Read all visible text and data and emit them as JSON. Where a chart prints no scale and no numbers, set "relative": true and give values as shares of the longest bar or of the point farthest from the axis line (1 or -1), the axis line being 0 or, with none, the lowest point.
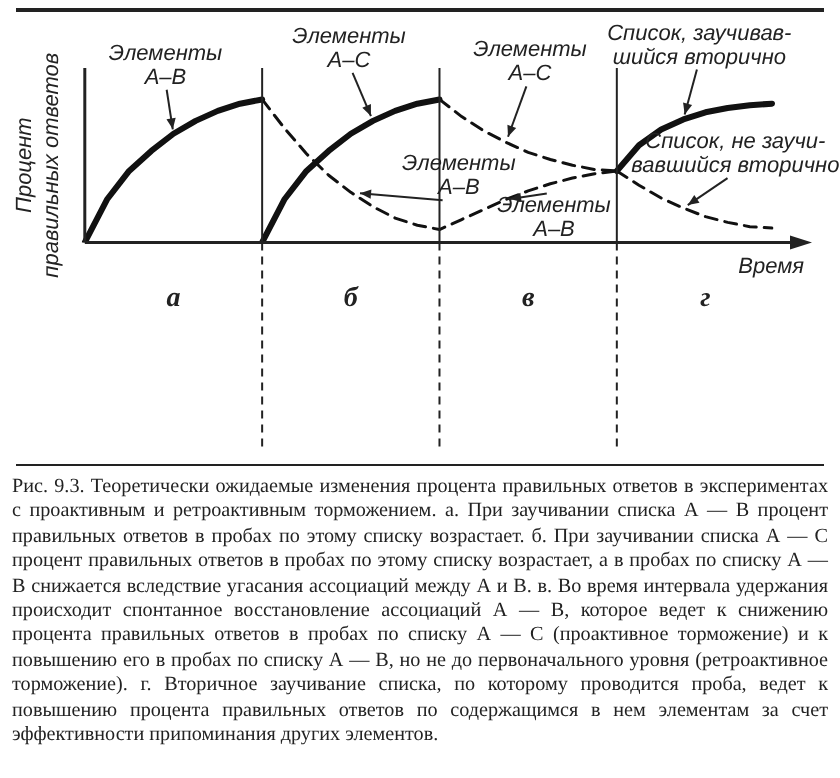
{
  "chart_data": {
    "type": "line",
    "relative": true,
    "ylabel": "Процент\nправильных ответов",
    "xlabel": "Время",
    "grid": "x",
    "categories": [
      null,
      null,
      null,
      null,
      "а",
      null,
      null,
      null,
      null,
      null,
      null,
      null,
      "б",
      null,
      null,
      null,
      null,
      null,
      null,
      null,
      "в",
      null,
      null,
      null,
      null,
      null,
      null,
      null,
      "г",
      null,
      null,
      null
    ],
    "series": [
      {
        "color": "#111111",
        "line_style": "solid",
        "values": [
          0,
          0.3,
          0.5,
          0.64,
          0.76,
          0.85,
          0.92,
          0.97,
          1,
          null,
          null,
          null,
          null,
          null,
          null,
          null,
          null,
          null,
          null,
          null,
          null,
          null,
          null,
          null,
          null,
          null,
          null,
          null,
          null,
          null,
          null,
          null
        ]
      },
      {
        "color": "#111111",
        "line_style": "dashed",
        "values": [
          null,
          null,
          null,
          null,
          null,
          null,
          null,
          null,
          1,
          0.8,
          0.62,
          0.47,
          0.35,
          0.25,
          0.17,
          0.12,
          0.09,
          0.16,
          0.23,
          0.3,
          0.36,
          0.41,
          0.45,
          0.48,
          0.5,
          null,
          null,
          null,
          null,
          null,
          null,
          null
        ]
      },
      {
        "color": "#111111",
        "line_style": "solid",
        "values": [
          null,
          null,
          null,
          null,
          null,
          null,
          null,
          null,
          0,
          0.3,
          0.5,
          0.64,
          0.76,
          0.85,
          0.92,
          0.97,
          1,
          null,
          null,
          null,
          null,
          null,
          null,
          null,
          null,
          null,
          null,
          null,
          null,
          null,
          null,
          null
        ]
      },
      {
        "color": "#111111",
        "line_style": "dashed",
        "values": [
          null,
          null,
          null,
          null,
          null,
          null,
          null,
          null,
          null,
          null,
          null,
          null,
          null,
          null,
          null,
          null,
          1,
          0.88,
          0.78,
          0.7,
          0.63,
          0.58,
          0.54,
          0.51,
          0.5,
          null,
          null,
          null,
          null,
          null,
          null,
          null
        ]
      },
      {
        "color": "#111111",
        "line_style": "solid",
        "values": [
          null,
          null,
          null,
          null,
          null,
          null,
          null,
          null,
          null,
          null,
          null,
          null,
          null,
          null,
          null,
          null,
          null,
          null,
          null,
          null,
          null,
          null,
          null,
          null,
          0.5,
          0.68,
          0.79,
          0.86,
          0.91,
          0.94,
          0.96,
          0.97
        ]
      },
      {
        "color": "#111111",
        "line_style": "dashed",
        "values": [
          null,
          null,
          null,
          null,
          null,
          null,
          null,
          null,
          null,
          null,
          null,
          null,
          null,
          null,
          null,
          null,
          null,
          null,
          null,
          null,
          null,
          null,
          null,
          null,
          0.5,
          0.4,
          0.31,
          0.24,
          0.18,
          0.14,
          0.11,
          0.1
        ]
      }
    ],
    "annotations": [
      "Элементы\nА–В",
      "Элементы\nА–С",
      "Элементы\nА–В",
      "Элементы\nА–С",
      "Элементы\nА–В",
      "Список, заучивав-\nшийся вторично",
      "Список, не заучи-\nвавшийся вторично",
      "Рис. 9.3. Теоретически ожидаемые изменения процента правильных ответов в экспериментах с проактивным и ретроактивным торможением. а. При заучивании списка А — В процент правильных ответов в пробах по этому списку возрастает. б. При заучивании списка А — С процент правильных ответов в пробах по этому списку возрастает, а в пробах по списку А — В снижается вследствие угасания ассоциаций между А и В. в. Во время интервала удержания происходит спонтанное восстановление ассоциаций А — В, которое ведет к снижению процента правильных ответов в пробах по списку А — С (проактивное торможение) и к повышению его в пробах по списку А — В, но не до первоначального уровня (ретроактивное торможение). г. Вторичное заучивание списка, по которому проводится проба, ведет к повышению процента правильных ответов по содержащимся в нем элементам за счет эффективности припоминания других элементов."
    ]
  }
}
